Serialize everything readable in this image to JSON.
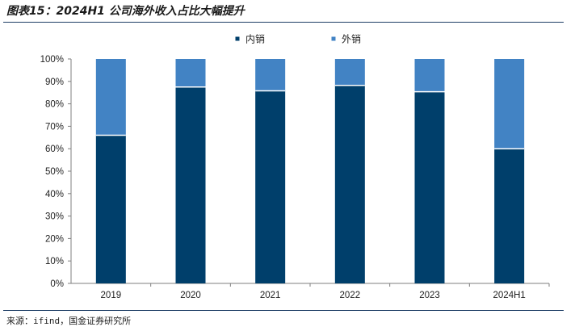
{
  "figure": {
    "title": "图表15：2024H1 公司海外收入占比大幅提升",
    "source": "来源：ifind，国金证券研究所"
  },
  "chart_data": {
    "type": "bar",
    "stacked": true,
    "categories": [
      "2019",
      "2020",
      "2021",
      "2022",
      "2023",
      "2024H1"
    ],
    "series": [
      {
        "name": "内销",
        "color": "#003f6b",
        "values": [
          66,
          87.5,
          85.8,
          88.2,
          85.4,
          60
        ]
      },
      {
        "name": "外销",
        "color": "#4283c4",
        "values": [
          34,
          12.5,
          14.2,
          11.8,
          14.6,
          40
        ]
      }
    ],
    "ylim": [
      0,
      100
    ],
    "yticks": [
      "0%",
      "10%",
      "20%",
      "30%",
      "40%",
      "50%",
      "60%",
      "70%",
      "80%",
      "90%",
      "100%"
    ],
    "legend": "top-center",
    "grid": false
  }
}
